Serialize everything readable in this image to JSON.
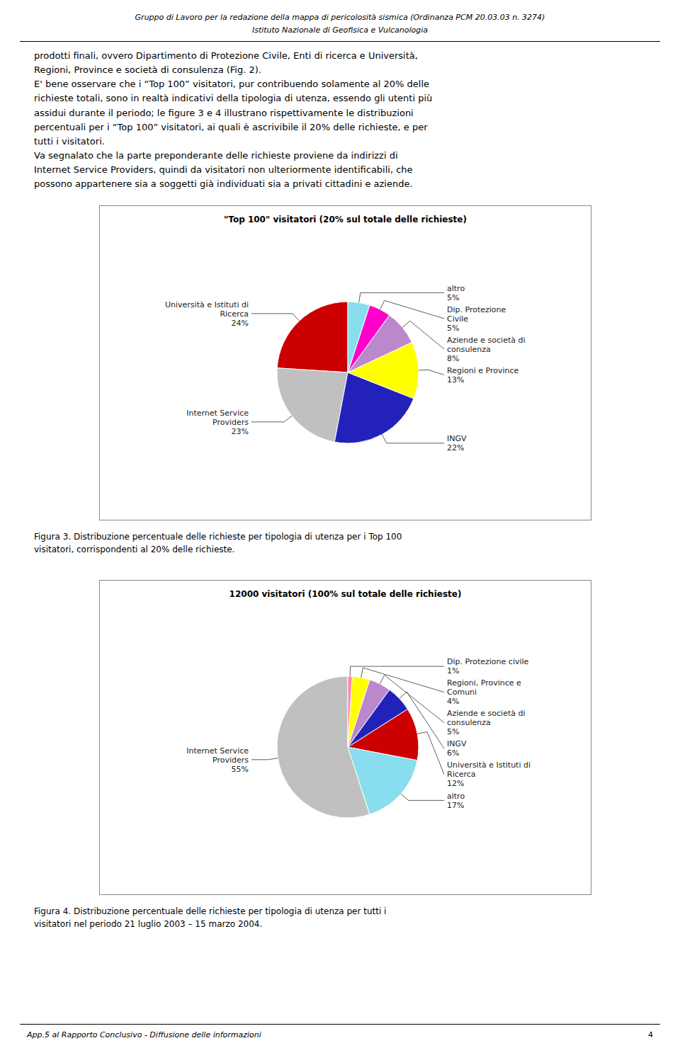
{
  "chart_data": [
    {
      "type": "pie",
      "title": "\"Top 100\" visitatori (20% sul totale delle richieste)",
      "categories": [
        "Università e Istituti di\nRicerca",
        "Internet Service\nProviders",
        "INGV",
        "Regioni e Province",
        "Aziende e società di\nconsulenza",
        "Dip. Protezione\nCivile",
        "altro"
      ],
      "values": [
        24,
        23,
        22,
        13,
        8,
        5,
        5
      ],
      "value_labels": [
        "24%",
        "23%",
        "22%",
        "13%",
        "8%",
        "5%",
        "5%"
      ],
      "data_labels": true,
      "colors": [
        "#CC0000",
        "#C0C0C0",
        "#2222BB",
        "#FFFF00",
        "#BB88CC",
        "#FF00CC",
        "#88DDEE"
      ],
      "annotations": [
        "Gruppo di Lavoro per la redazione della mappa di pericolosità sismica (Ordinanza PCM 20.03.03 n. 3274)",
        "Istituto Nazionale di Geofisica e Vulcanologia",
        "prodotti finali, ovvero Dipartimento di Protezione Civile, Enti di ricerca e Università,\nRegioni, Province e società di consulenza (Fig. 2).\nE' bene osservare che i “Top 100” visitatori, pur contribuendo solamente al 20% delle\nrichieste totali, sono in realtà indicativi della tipologia di utenza, essendo gli utenti più\nassidui durante il periodo; le figure 3 e 4 illustrano rispettivamente le distribuzioni\npercentuali per i “Top 100” visitatori, ai quali è ascrivibile il 20% delle richieste, e per\ntutti i visitatori.\nVa segnalato che la parte preponderante delle richieste proviene da indirizzi di\nInternet Service Providers, quindi da visitatori non ulteriormente identificabili, che\npossono appartenere sia a soggetti già individuati sia a privati cittadini e aziende.",
        "Figura 3.  Distribuzione percentuale delle richieste per tipologia di utenza per i Top 100",
        "visitatori, corrispondenti al 20% delle richieste."
      ]
    },
    {
      "type": "pie",
      "title": "12000 visitatori (100% sul totale delle richieste)",
      "categories": [
        "Internet Service\nProviders",
        "altro",
        "Università e Istituti di\nRicerca",
        "INGV",
        "Aziende e società di\nconsulenza",
        "Regioni, Province e\nComuni",
        "Dip. Protezione civile"
      ],
      "values": [
        55,
        17,
        12,
        6,
        5,
        4,
        1
      ],
      "value_labels": [
        "55%",
        "17%",
        "12%",
        "6%",
        "5%",
        "4%",
        "1%"
      ],
      "data_labels": true,
      "colors": [
        "#C0C0C0",
        "#88DDEE",
        "#CC0000",
        "#2222BB",
        "#BB88CC",
        "#FFFF00",
        "#FF88AA"
      ],
      "annotations": [
        "Figura 4.  Distribuzione percentuale delle richieste per tipologia di utenza per tutti i",
        "visitatori nel periodo 21 luglio 2003 – 15 marzo 2004.",
        "App.5 al Rapporto Conclusivo - Diffusione delle informazioni",
        "4"
      ]
    }
  ]
}
